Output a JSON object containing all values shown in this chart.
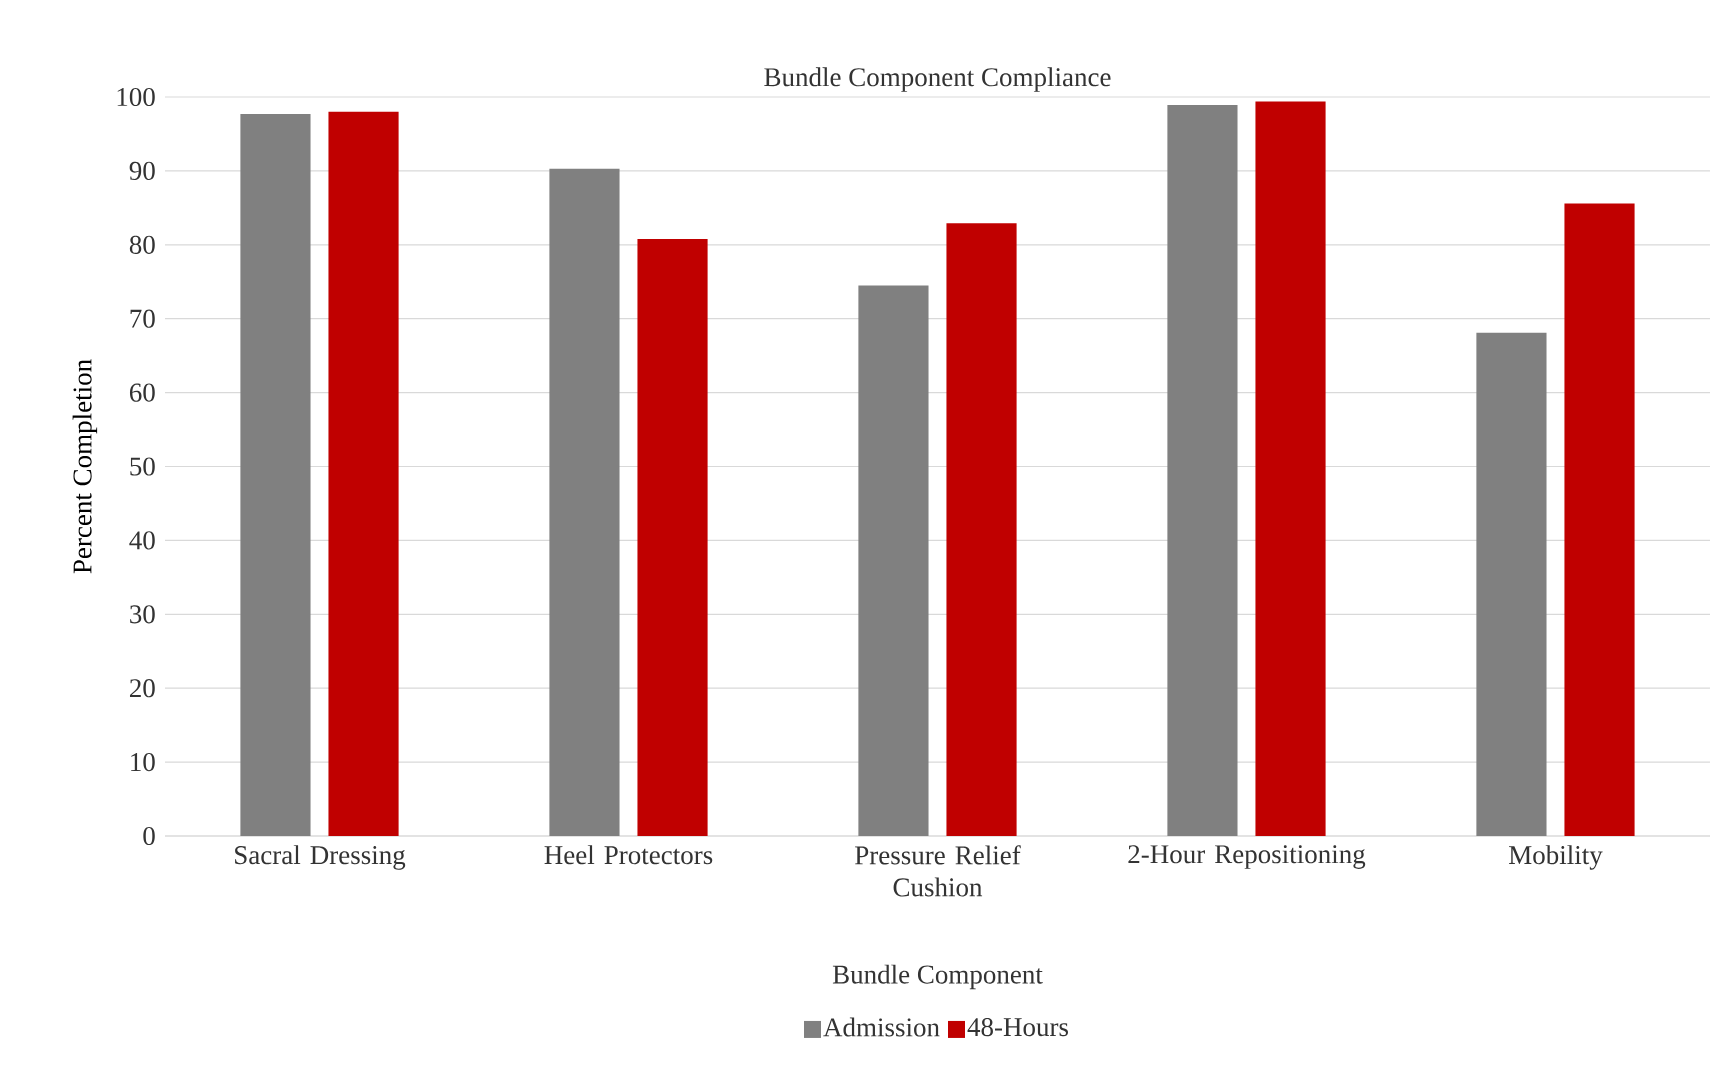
{
  "chart_data": {
    "type": "bar",
    "title": "Bundle Component Compliance",
    "xlabel": "Bundle Component",
    "ylabel": "Percent Completion",
    "categories": [
      "Sacral Dressing",
      "Heel Protectors",
      "Pressure Relief Cushion",
      "2-Hour Repositioning",
      "Mobility"
    ],
    "series": [
      {
        "name": "Admission",
        "color": "#808080",
        "values": [
          97.7,
          90.3,
          74.5,
          98.9,
          68.1
        ]
      },
      {
        "name": "48-Hours",
        "color": "#c00000",
        "values": [
          98.0,
          80.8,
          82.9,
          99.4,
          85.6
        ]
      }
    ],
    "ylim": [
      0,
      100
    ],
    "yticks": [
      0,
      10,
      20,
      30,
      40,
      50,
      60,
      70,
      80,
      90,
      100
    ],
    "grid": "y",
    "legend": "bottom"
  }
}
